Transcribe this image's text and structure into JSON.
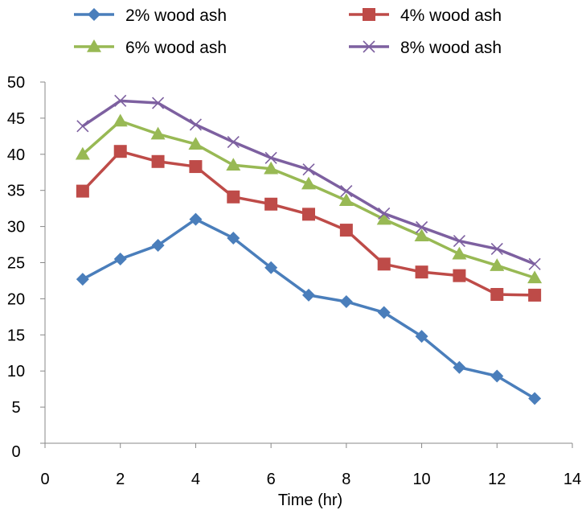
{
  "chart_data": {
    "type": "line",
    "title": "",
    "xlabel": "Time (hr)",
    "ylabel": "",
    "xlim": [
      0,
      14
    ],
    "ylim": [
      0,
      50
    ],
    "x_ticks": [
      "0",
      "2",
      "4",
      "6",
      "8",
      "10",
      "12",
      "14"
    ],
    "y_ticks": [
      "0",
      "5",
      "10",
      "15",
      "20",
      "25",
      "30",
      "35",
      "40",
      "45",
      "50"
    ],
    "x": [
      1,
      2,
      3,
      4,
      5,
      6,
      7,
      8,
      9,
      10,
      11,
      12,
      13
    ],
    "grid": false,
    "legend_position": "top",
    "series": [
      {
        "name": "2% wood ash",
        "color": "#4a7ebb",
        "marker": "diamond",
        "values": [
          22.7,
          25.5,
          27.4,
          31.0,
          28.4,
          24.3,
          20.5,
          19.6,
          18.1,
          14.8,
          10.5,
          9.3,
          6.2
        ]
      },
      {
        "name": "4% wood ash",
        "color": "#be4b48",
        "marker": "square",
        "values": [
          34.9,
          40.4,
          39.0,
          38.3,
          34.1,
          33.1,
          31.7,
          29.5,
          24.8,
          23.7,
          23.2,
          20.6,
          20.5
        ]
      },
      {
        "name": "6% wood ash",
        "color": "#98b954",
        "marker": "triangle",
        "values": [
          40.0,
          44.6,
          42.8,
          41.4,
          38.5,
          38.0,
          35.9,
          33.6,
          31.0,
          28.7,
          26.2,
          24.6,
          22.9
        ]
      },
      {
        "name": "8% wood ash",
        "color": "#7d60a0",
        "marker": "x",
        "values": [
          43.9,
          47.4,
          47.1,
          44.1,
          41.7,
          39.5,
          37.9,
          34.9,
          31.8,
          29.9,
          28.0,
          26.9,
          24.8
        ]
      }
    ]
  }
}
